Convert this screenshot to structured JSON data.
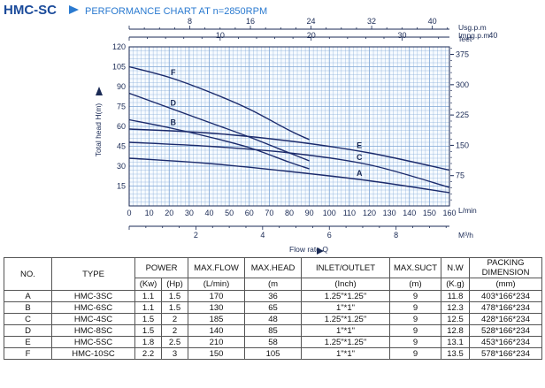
{
  "header": {
    "model": "HMC-SC",
    "arrow_icon": "triangle-right-icon",
    "title": "PERFORMANCE CHART AT n=2850RPM"
  },
  "chart_data": {
    "type": "line",
    "title": "PERFORMANCE CHART AT n=2850RPM",
    "xlabel": "Flow rate Q",
    "xunit": "L/min",
    "ylabel": "Total head H(m)",
    "y2unit": "feet",
    "xlim": [
      0,
      160
    ],
    "ylim": [
      0,
      120
    ],
    "grid": true,
    "x_ticks": [
      "0",
      "10",
      "20",
      "30",
      "40",
      "50",
      "60",
      "70",
      "80",
      "90",
      "100",
      "110",
      "120",
      "130",
      "140",
      "150",
      "160"
    ],
    "y_ticks": [
      "15",
      "30",
      "45",
      "60",
      "75",
      "90",
      "105",
      "120"
    ],
    "y_right_ticks": [
      "75",
      "150",
      "225",
      "300",
      "375"
    ],
    "top_axis_usgpm": {
      "unit": "Usg.p.m",
      "ticks": [
        "8",
        "16",
        "24",
        "32",
        "40"
      ]
    },
    "top_axis_impgpm": {
      "unit": "Impg.p.m",
      "ticks": [
        "10",
        "20",
        "30",
        "40"
      ]
    },
    "bottom_axis_m3h": {
      "unit": "M³/h",
      "ticks": [
        "2",
        "4",
        "6",
        "8"
      ]
    },
    "series": [
      {
        "name": "A",
        "x": [
          0,
          40,
          80,
          120,
          160
        ],
        "y": [
          36,
          32,
          26,
          19,
          10
        ]
      },
      {
        "name": "B",
        "x": [
          0,
          20,
          40,
          60,
          80,
          90
        ],
        "y": [
          65,
          59,
          52,
          44,
          33,
          28
        ]
      },
      {
        "name": "C",
        "x": [
          0,
          40,
          80,
          120,
          160
        ],
        "y": [
          48,
          45,
          40,
          31,
          14
        ]
      },
      {
        "name": "D",
        "x": [
          0,
          20,
          40,
          60,
          80,
          90
        ],
        "y": [
          85,
          74,
          63,
          52,
          40,
          34
        ]
      },
      {
        "name": "E",
        "x": [
          0,
          40,
          80,
          120,
          160
        ],
        "y": [
          58,
          55,
          49,
          40,
          27
        ]
      },
      {
        "name": "F",
        "x": [
          0,
          20,
          40,
          60,
          80,
          90
        ],
        "y": [
          105,
          97,
          86,
          73,
          57,
          50
        ]
      }
    ],
    "colors": {
      "curve": "#1b2a6b",
      "grid": "#7ea6d6",
      "axis": "#1a2a55"
    }
  },
  "table": {
    "headers": [
      "NO.",
      "TYPE",
      "POWER",
      "MAX.FLOW",
      "MAX.HEAD",
      "INLET/OUTLET",
      "MAX.SUCT",
      "N.W",
      "PACKING DIMENSION"
    ],
    "units": [
      "(Kw)",
      "(Hp)",
      "(L/min)",
      "(m",
      "(Inch)",
      "(m)",
      "(K.g)",
      "(mm)"
    ],
    "rows": [
      [
        "A",
        "HMC-3SC",
        "1.1",
        "1.5",
        "170",
        "36",
        "1.25\"*1.25\"",
        "9",
        "11.8",
        "403*166*234"
      ],
      [
        "B",
        "HMC-6SC",
        "1.1",
        "1.5",
        "130",
        "65",
        "1\"*1\"",
        "9",
        "12.3",
        "478*166*234"
      ],
      [
        "C",
        "HMC-4SC",
        "1.5",
        "2",
        "185",
        "48",
        "1.25\"*1.25\"",
        "9",
        "12.5",
        "428*166*234"
      ],
      [
        "D",
        "HMC-8SC",
        "1.5",
        "2",
        "140",
        "85",
        "1\"*1\"",
        "9",
        "12.8",
        "528*166*234"
      ],
      [
        "E",
        "HMC-5SC",
        "1.8",
        "2.5",
        "210",
        "58",
        "1.25\"*1.25\"",
        "9",
        "13.1",
        "453*166*234"
      ],
      [
        "F",
        "HMC-10SC",
        "2.2",
        "3",
        "150",
        "105",
        "1\"*1\"",
        "9",
        "13.5",
        "578*166*234"
      ]
    ]
  }
}
